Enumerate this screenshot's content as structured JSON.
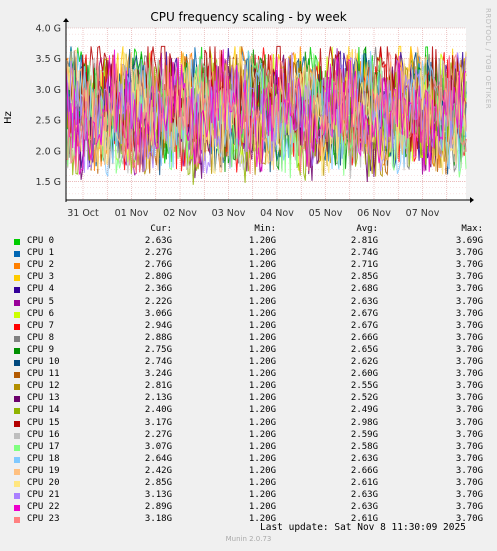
{
  "title": "CPU frequency scaling - by week",
  "side_note": "RRDTOOL / TOBI OETIKER",
  "last_update": "Last update: Sat Nov  8 11:30:09 2025",
  "footer": "Munin 2.0.73",
  "legend_headers": {
    "cur": "Cur:",
    "min": "Min:",
    "avg": "Avg:",
    "max": "Max:"
  },
  "chart_data": {
    "type": "line",
    "title": "CPU frequency scaling - by week",
    "xlabel": "",
    "ylabel": "Hz",
    "ylim": [
      1.2,
      4.0
    ],
    "y_ticks": [
      "1.5 G",
      "2.0 G",
      "2.5 G",
      "3.0 G",
      "3.5 G",
      "4.0 G"
    ],
    "y_tick_values": [
      1.5,
      2.0,
      2.5,
      3.0,
      3.5,
      4.0
    ],
    "x_ticks": [
      "31 Oct",
      "01 Nov",
      "02 Nov",
      "03 Nov",
      "04 Nov",
      "05 Nov",
      "06 Nov",
      "07 Nov"
    ],
    "grid": true,
    "series": [
      {
        "name": "CPU 0",
        "color": "#00cc00",
        "cur": "2.63G",
        "min": "1.20G",
        "avg": "2.81G",
        "max": "3.69G"
      },
      {
        "name": "CPU 1",
        "color": "#0066b3",
        "cur": "2.27G",
        "min": "1.20G",
        "avg": "2.74G",
        "max": "3.70G"
      },
      {
        "name": "CPU 2",
        "color": "#ff8000",
        "cur": "2.76G",
        "min": "1.20G",
        "avg": "2.71G",
        "max": "3.70G"
      },
      {
        "name": "CPU 3",
        "color": "#ffcc00",
        "cur": "2.80G",
        "min": "1.20G",
        "avg": "2.85G",
        "max": "3.70G"
      },
      {
        "name": "CPU 4",
        "color": "#330099",
        "cur": "2.36G",
        "min": "1.20G",
        "avg": "2.68G",
        "max": "3.70G"
      },
      {
        "name": "CPU 5",
        "color": "#990099",
        "cur": "2.22G",
        "min": "1.20G",
        "avg": "2.63G",
        "max": "3.70G"
      },
      {
        "name": "CPU 6",
        "color": "#ccff00",
        "cur": "3.06G",
        "min": "1.20G",
        "avg": "2.67G",
        "max": "3.70G"
      },
      {
        "name": "CPU 7",
        "color": "#ff0000",
        "cur": "2.94G",
        "min": "1.20G",
        "avg": "2.67G",
        "max": "3.70G"
      },
      {
        "name": "CPU 8",
        "color": "#808080",
        "cur": "2.88G",
        "min": "1.20G",
        "avg": "2.66G",
        "max": "3.70G"
      },
      {
        "name": "CPU 9",
        "color": "#008f00",
        "cur": "2.75G",
        "min": "1.20G",
        "avg": "2.65G",
        "max": "3.70G"
      },
      {
        "name": "CPU 10",
        "color": "#00487d",
        "cur": "2.74G",
        "min": "1.20G",
        "avg": "2.62G",
        "max": "3.70G"
      },
      {
        "name": "CPU 11",
        "color": "#b35a00",
        "cur": "3.24G",
        "min": "1.20G",
        "avg": "2.60G",
        "max": "3.70G"
      },
      {
        "name": "CPU 12",
        "color": "#b38f00",
        "cur": "2.81G",
        "min": "1.20G",
        "avg": "2.55G",
        "max": "3.70G"
      },
      {
        "name": "CPU 13",
        "color": "#6b006b",
        "cur": "2.13G",
        "min": "1.20G",
        "avg": "2.52G",
        "max": "3.70G"
      },
      {
        "name": "CPU 14",
        "color": "#8fb300",
        "cur": "2.40G",
        "min": "1.20G",
        "avg": "2.49G",
        "max": "3.70G"
      },
      {
        "name": "CPU 15",
        "color": "#b30000",
        "cur": "3.17G",
        "min": "1.20G",
        "avg": "2.98G",
        "max": "3.70G"
      },
      {
        "name": "CPU 16",
        "color": "#bebebe",
        "cur": "2.27G",
        "min": "1.20G",
        "avg": "2.59G",
        "max": "3.70G"
      },
      {
        "name": "CPU 17",
        "color": "#80ff80",
        "cur": "3.07G",
        "min": "1.20G",
        "avg": "2.58G",
        "max": "3.70G"
      },
      {
        "name": "CPU 18",
        "color": "#80c9ff",
        "cur": "2.64G",
        "min": "1.20G",
        "avg": "2.63G",
        "max": "3.70G"
      },
      {
        "name": "CPU 19",
        "color": "#ffc080",
        "cur": "2.42G",
        "min": "1.20G",
        "avg": "2.66G",
        "max": "3.70G"
      },
      {
        "name": "CPU 20",
        "color": "#ffe680",
        "cur": "2.85G",
        "min": "1.20G",
        "avg": "2.61G",
        "max": "3.70G"
      },
      {
        "name": "CPU 21",
        "color": "#aa80ff",
        "cur": "3.13G",
        "min": "1.20G",
        "avg": "2.63G",
        "max": "3.70G"
      },
      {
        "name": "CPU 22",
        "color": "#ee00cc",
        "cur": "2.89G",
        "min": "1.20G",
        "avg": "2.63G",
        "max": "3.70G"
      },
      {
        "name": "CPU 23",
        "color": "#ff8080",
        "cur": "3.18G",
        "min": "1.20G",
        "avg": "2.61G",
        "max": "3.70G"
      }
    ]
  }
}
